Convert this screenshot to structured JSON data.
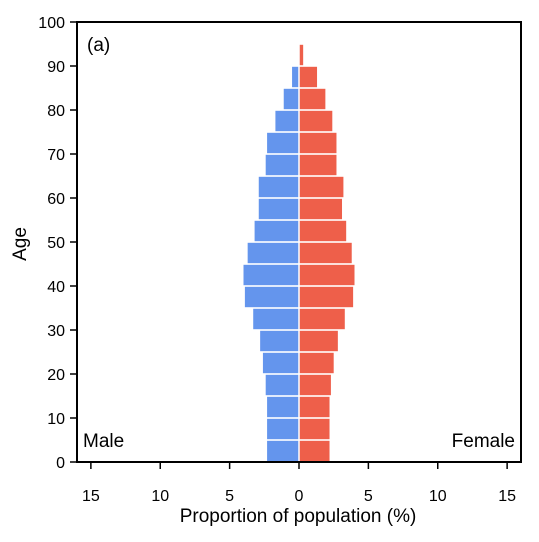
{
  "chart_data": {
    "type": "bar",
    "orientation": "horizontal",
    "panel_label": "(a)",
    "xlabel": "Proportion of population (%)",
    "ylabel": "Age",
    "xlim": [
      -16,
      16
    ],
    "ylim": [
      0,
      100
    ],
    "x_ticks": [
      -15,
      -10,
      -5,
      0,
      5,
      10,
      15
    ],
    "x_tick_labels": [
      "15",
      "10",
      "5",
      "0",
      "5",
      "10",
      "15"
    ],
    "y_ticks": [
      0,
      10,
      20,
      30,
      40,
      50,
      60,
      70,
      80,
      90,
      100
    ],
    "y_tick_labels": [
      "0",
      "10",
      "20",
      "30",
      "40",
      "50",
      "60",
      "70",
      "80",
      "90",
      "100"
    ],
    "age_bin_width": 5,
    "age_groups": [
      0,
      5,
      10,
      15,
      20,
      25,
      30,
      35,
      40,
      45,
      50,
      55,
      60,
      65,
      70,
      75,
      80,
      85,
      90,
      95
    ],
    "series": [
      {
        "name": "Male",
        "color": "#6495ED",
        "values": [
          2.3,
          2.3,
          2.3,
          2.4,
          2.6,
          2.8,
          3.3,
          3.9,
          4.0,
          3.7,
          3.2,
          2.9,
          2.9,
          2.4,
          2.3,
          1.7,
          1.1,
          0.5,
          0.0,
          0.0
        ]
      },
      {
        "name": "Female",
        "color": "#EE5F4A",
        "values": [
          2.2,
          2.2,
          2.2,
          2.3,
          2.5,
          2.8,
          3.3,
          3.9,
          4.0,
          3.8,
          3.4,
          3.1,
          3.2,
          2.7,
          2.7,
          2.4,
          1.9,
          1.3,
          0.3,
          0.0
        ]
      }
    ],
    "grid": false,
    "legend": "none"
  }
}
